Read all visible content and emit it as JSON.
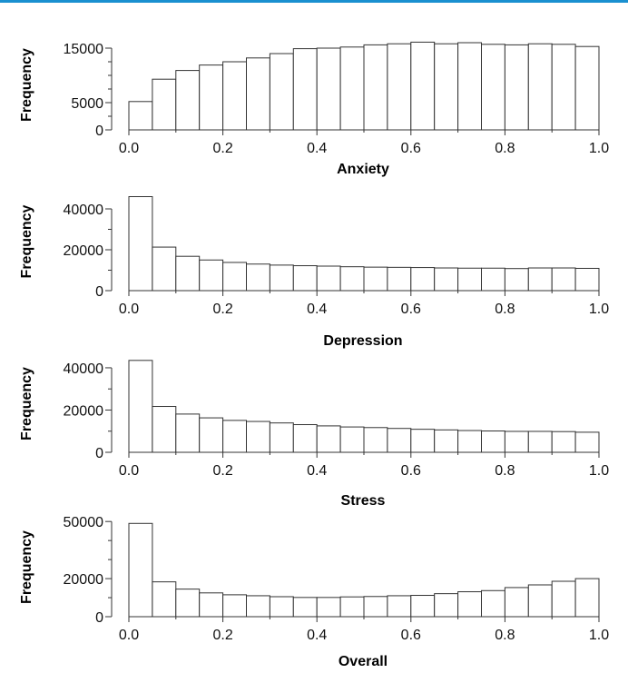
{
  "accent_color": "#1a90d0",
  "chart_data": [
    {
      "type": "bar",
      "title": "",
      "xlabel": "Anxiety",
      "ylabel": "Frequency",
      "xlim": [
        0,
        1
      ],
      "ylim": [
        0,
        16500
      ],
      "x_ticks": [
        "0.0",
        "0.2",
        "0.4",
        "0.6",
        "0.8",
        "1.0"
      ],
      "y_ticks": [
        0,
        5000,
        15000
      ],
      "y_tick_labels": [
        "0",
        "5000",
        "15000"
      ],
      "bin_width": 0.05,
      "bins_start": [
        0,
        0.05,
        0.1,
        0.15,
        0.2,
        0.25,
        0.3,
        0.35,
        0.4,
        0.45,
        0.5,
        0.55,
        0.6,
        0.65,
        0.7,
        0.75,
        0.8,
        0.85,
        0.9,
        0.95
      ],
      "values": [
        5200,
        9300,
        10900,
        11900,
        12500,
        13200,
        14000,
        14900,
        15000,
        15200,
        15600,
        15800,
        16100,
        15800,
        16000,
        15700,
        15600,
        15800,
        15700,
        15300
      ]
    },
    {
      "type": "bar",
      "title": "",
      "xlabel": "Depression",
      "ylabel": "Frequency",
      "xlim": [
        0,
        1
      ],
      "ylim": [
        0,
        48000
      ],
      "x_ticks": [
        "0.0",
        "0.2",
        "0.4",
        "0.6",
        "0.8",
        "1.0"
      ],
      "y_ticks": [
        0,
        20000,
        40000
      ],
      "y_tick_labels": [
        "0",
        "20000",
        "40000"
      ],
      "bin_width": 0.05,
      "bins_start": [
        0,
        0.05,
        0.1,
        0.15,
        0.2,
        0.25,
        0.3,
        0.35,
        0.4,
        0.45,
        0.5,
        0.55,
        0.6,
        0.65,
        0.7,
        0.75,
        0.8,
        0.85,
        0.9,
        0.95
      ],
      "values": [
        46000,
        21300,
        16800,
        15000,
        13800,
        13000,
        12500,
        12200,
        12000,
        11700,
        11500,
        11400,
        11300,
        11100,
        11000,
        11000,
        10800,
        11100,
        11100,
        10900
      ]
    },
    {
      "type": "bar",
      "title": "",
      "xlabel": "Stress",
      "ylabel": "Frequency",
      "xlim": [
        0,
        1
      ],
      "ylim": [
        0,
        46000
      ],
      "x_ticks": [
        "0.0",
        "0.2",
        "0.4",
        "0.6",
        "0.8",
        "1.0"
      ],
      "y_ticks": [
        0,
        20000,
        40000
      ],
      "y_tick_labels": [
        "0",
        "20000",
        "40000"
      ],
      "bin_width": 0.05,
      "bins_start": [
        0,
        0.05,
        0.1,
        0.15,
        0.2,
        0.25,
        0.3,
        0.35,
        0.4,
        0.45,
        0.5,
        0.55,
        0.6,
        0.65,
        0.7,
        0.75,
        0.8,
        0.85,
        0.9,
        0.95
      ],
      "values": [
        43500,
        21700,
        18100,
        16300,
        15100,
        14600,
        13900,
        13100,
        12500,
        12000,
        11700,
        11300,
        10900,
        10600,
        10300,
        10100,
        9900,
        9900,
        9800,
        9500
      ]
    },
    {
      "type": "bar",
      "title": "",
      "xlabel": "Overall",
      "ylabel": "Frequency",
      "xlim": [
        0,
        1
      ],
      "ylim": [
        0,
        52000
      ],
      "x_ticks": [
        "0.0",
        "0.2",
        "0.4",
        "0.6",
        "0.8",
        "1.0"
      ],
      "y_ticks": [
        0,
        20000,
        50000
      ],
      "y_tick_labels": [
        "0",
        "20000",
        "50000"
      ],
      "bin_width": 0.05,
      "bins_start": [
        0,
        0.05,
        0.1,
        0.15,
        0.2,
        0.25,
        0.3,
        0.35,
        0.4,
        0.45,
        0.5,
        0.55,
        0.6,
        0.65,
        0.7,
        0.75,
        0.8,
        0.85,
        0.9,
        0.95
      ],
      "values": [
        49000,
        18300,
        14500,
        12500,
        11500,
        11000,
        10500,
        10100,
        10100,
        10400,
        10600,
        11000,
        11200,
        12100,
        13100,
        13700,
        15300,
        16700,
        18600,
        20000
      ]
    }
  ]
}
